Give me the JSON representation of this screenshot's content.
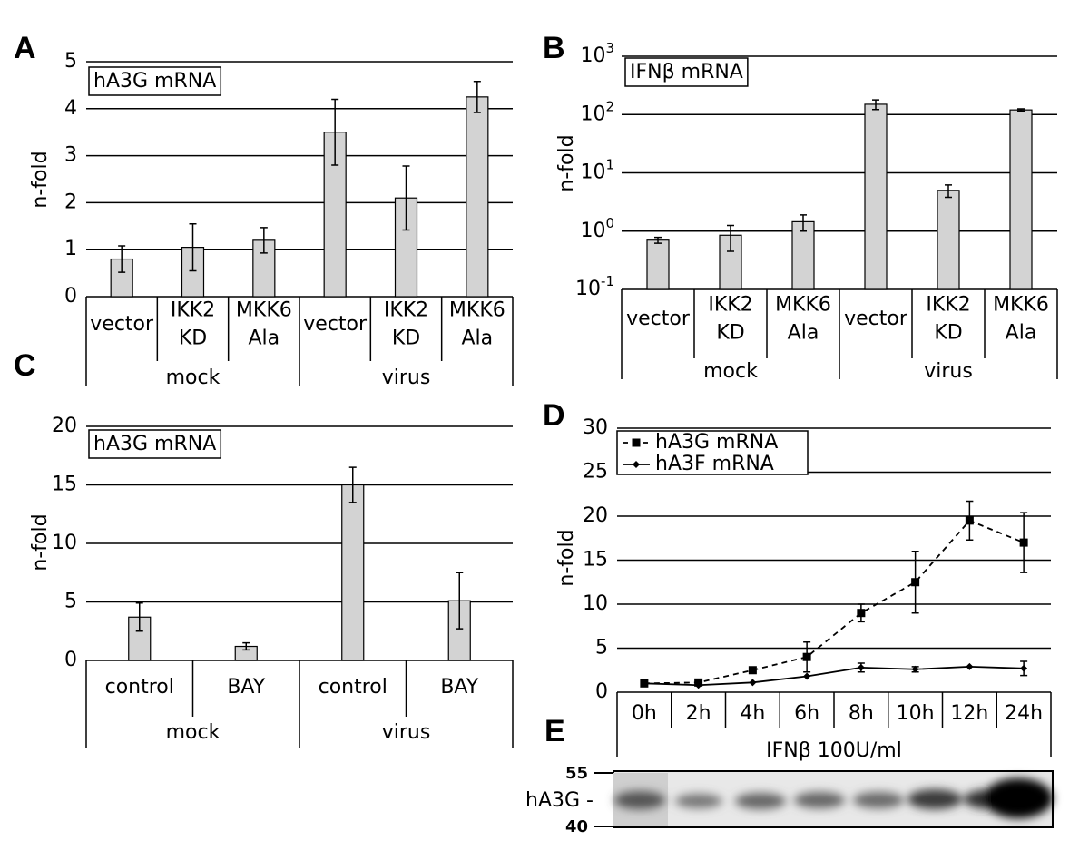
{
  "chart_data": [
    {
      "type": "bar",
      "panel": "A",
      "y_label": "n-fold",
      "annotation": "hA3G mRNA",
      "categories": [
        [
          "vector"
        ],
        [
          "IKK2",
          "KD"
        ],
        [
          "MKK6",
          "Ala"
        ],
        [
          "vector"
        ],
        [
          "IKK2",
          "KD"
        ],
        [
          "MKK6",
          "Ala"
        ]
      ],
      "groups": [
        "mock",
        "virus"
      ],
      "values": [
        0.8,
        1.05,
        1.2,
        3.5,
        2.1,
        4.25
      ],
      "errors": [
        0.28,
        0.5,
        0.27,
        0.7,
        0.68,
        0.33
      ],
      "color": "#d3d3d3",
      "ylim": [
        0,
        5
      ],
      "yticks": [
        0,
        1,
        2,
        3,
        4,
        5
      ],
      "grid": true,
      "log": false
    },
    {
      "type": "bar",
      "panel": "B",
      "y_label": "n-fold",
      "annotation": "IFNβ mRNA",
      "categories": [
        [
          "vector"
        ],
        [
          "IKK2",
          "KD"
        ],
        [
          "MKK6",
          "Ala"
        ],
        [
          "vector"
        ],
        [
          "IKK2",
          "KD"
        ],
        [
          "MKK6",
          "Ala"
        ]
      ],
      "groups": [
        "mock",
        "virus"
      ],
      "values": [
        0.7,
        0.85,
        1.45,
        150,
        5,
        120
      ],
      "errors": [
        0.08,
        0.4,
        0.45,
        28,
        1.2,
        5
      ],
      "color": "#d3d3d3",
      "ylim": [
        0.1,
        1000
      ],
      "yticks": [
        {
          "value": 0.1,
          "label": "10",
          "exponent": "-1"
        },
        {
          "value": 1,
          "label": "10",
          "exponent": "0"
        },
        {
          "value": 10,
          "label": "10",
          "exponent": "1"
        },
        {
          "value": 100,
          "label": "10",
          "exponent": "2"
        },
        {
          "value": 1000,
          "label": "10",
          "exponent": "3"
        }
      ],
      "grid": true,
      "log": true
    },
    {
      "type": "bar",
      "panel": "C",
      "y_label": "n-fold",
      "annotation": "hA3G mRNA",
      "categories": [
        [
          "control"
        ],
        [
          "BAY"
        ],
        [
          "control"
        ],
        [
          "BAY"
        ]
      ],
      "groups": [
        "mock",
        "virus"
      ],
      "values": [
        3.7,
        1.2,
        15,
        5.1
      ],
      "errors": [
        1.2,
        0.3,
        1.5,
        2.4
      ],
      "color": "#d3d3d3",
      "ylim": [
        0,
        20
      ],
      "yticks": [
        0,
        5,
        10,
        15,
        20
      ],
      "grid": true,
      "log": false
    },
    {
      "type": "line",
      "panel": "D",
      "y_label": "n-fold",
      "x_label": "IFNβ 100U/ml",
      "categories": [
        "0h",
        "2h",
        "4h",
        "6h",
        "8h",
        "10h",
        "12h",
        "24h"
      ],
      "series": [
        {
          "name": "hA3G mRNA",
          "color": "#000000",
          "dash": "dashed",
          "marker": "square",
          "values": [
            1,
            1.1,
            2.5,
            4,
            9,
            12.5,
            19.5,
            17
          ],
          "errors": [
            0,
            0,
            0.3,
            1.7,
            1,
            3.5,
            2.2,
            3.4
          ]
        },
        {
          "name": "hA3F mRNA",
          "color": "#000000",
          "dash": "solid",
          "marker": "diamond",
          "values": [
            1,
            0.8,
            1.1,
            1.8,
            2.8,
            2.6,
            2.9,
            2.7
          ],
          "errors": [
            0,
            0,
            0,
            0,
            0.5,
            0.3,
            0,
            0.8
          ]
        }
      ],
      "ylim": [
        0,
        30
      ],
      "yticks": [
        0,
        5,
        10,
        15,
        20,
        25,
        30
      ],
      "grid": true
    }
  ],
  "blot": {
    "panel": "E",
    "protein": "hA3G -",
    "marker_top": "55",
    "marker_bottom": "40"
  }
}
